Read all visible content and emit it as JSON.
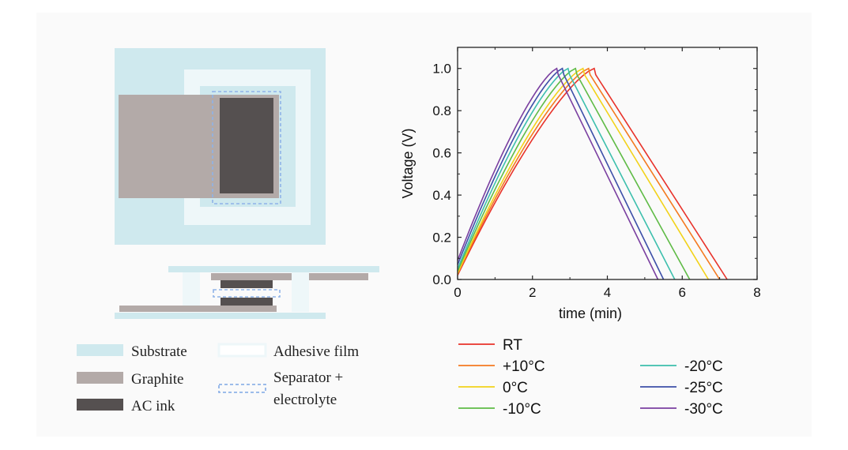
{
  "colors": {
    "substrate": "#cfe9ee",
    "adhesive": "#eef7f9",
    "graphite": "#b3aaa8",
    "ac_ink": "#555050",
    "separator": "#8fb3e8"
  },
  "schematic_legend": {
    "substrate": "Substrate",
    "adhesive": "Adhesive film",
    "graphite": "Graphite",
    "separator_line1": "Separator +",
    "separator_line2": "electrolyte",
    "ac_ink": "AC ink"
  },
  "chart_data": {
    "type": "line",
    "xlabel": "time (min)",
    "ylabel": "Voltage (V)",
    "xlim": [
      0,
      8
    ],
    "ylim": [
      0,
      1.1
    ],
    "xticks": [
      "0",
      "2",
      "4",
      "6",
      "8"
    ],
    "yticks": [
      "0.0",
      "0.2",
      "0.4",
      "0.6",
      "0.8",
      "1.0"
    ],
    "series": [
      {
        "name": "RT",
        "color": "#e8322a",
        "peak_time": 3.65,
        "end_time": 7.2,
        "start_voltage": 0.02
      },
      {
        "name": "+10°C",
        "color": "#f47a20",
        "peak_time": 3.5,
        "end_time": 7.0,
        "start_voltage": 0.025
      },
      {
        "name": "0°C",
        "color": "#f2d21a",
        "peak_time": 3.35,
        "end_time": 6.7,
        "start_voltage": 0.03
      },
      {
        "name": "-10°C",
        "color": "#5fbb46",
        "peak_time": 3.15,
        "end_time": 6.2,
        "start_voltage": 0.04
      },
      {
        "name": "-20°C",
        "color": "#3dbfad",
        "peak_time": 2.95,
        "end_time": 5.8,
        "start_voltage": 0.05
      },
      {
        "name": "-25°C",
        "color": "#3d4fa8",
        "peak_time": 2.8,
        "end_time": 5.5,
        "start_voltage": 0.07
      },
      {
        "name": "-30°C",
        "color": "#7a3fa0",
        "peak_time": 2.65,
        "end_time": 5.35,
        "start_voltage": 0.09
      }
    ]
  }
}
